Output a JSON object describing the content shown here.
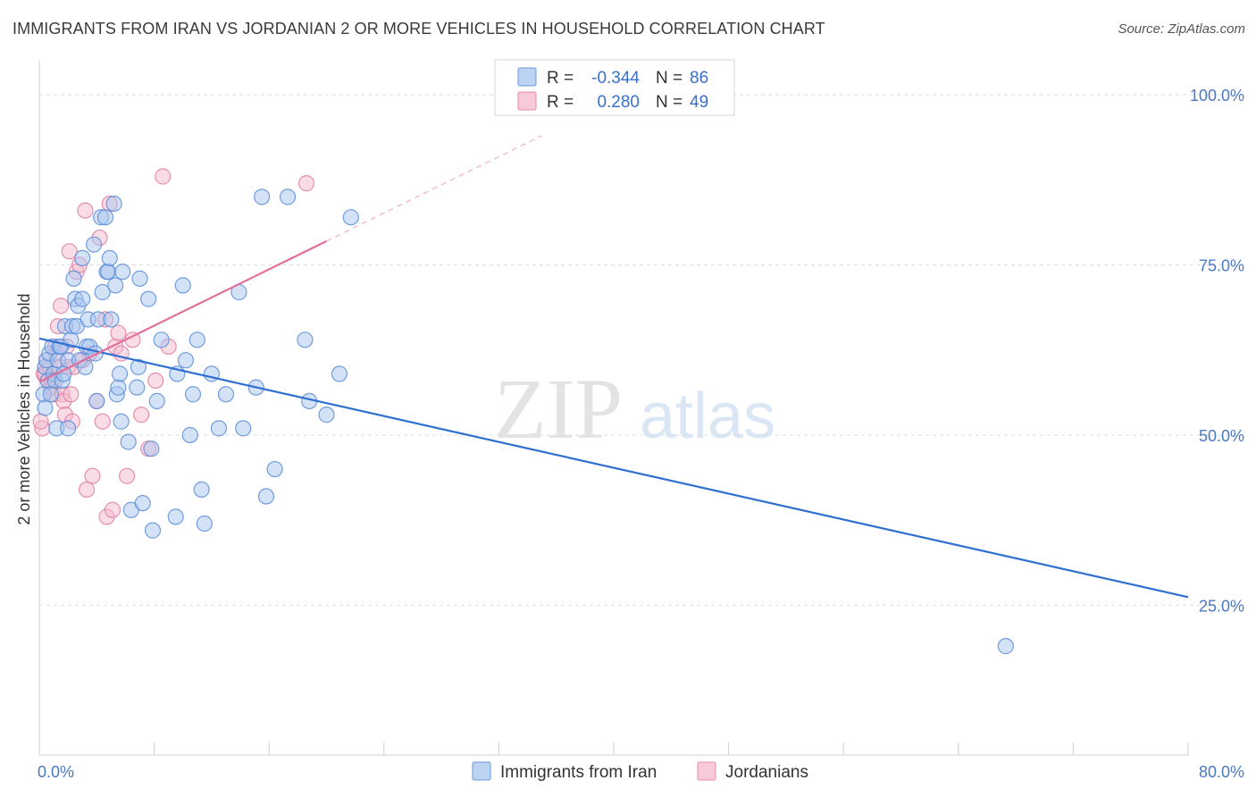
{
  "header": {
    "title": "IMMIGRANTS FROM IRAN VS JORDANIAN 2 OR MORE VEHICLES IN HOUSEHOLD CORRELATION CHART",
    "source": "Source: ZipAtlas.com"
  },
  "watermark": {
    "zip": "ZIP",
    "atlas": "atlas"
  },
  "colors": {
    "blue_fill": "#a9c6ef",
    "blue_stroke": "#5a8ed8",
    "blue_line": "#2f6fd0",
    "pink_fill": "#f6b9cd",
    "pink_stroke": "#e07fa3",
    "pink_line": "#e0709b",
    "grid": "#dedede",
    "axis_text": "#4a78c2"
  },
  "legend": {
    "rows": [
      {
        "r_label": "R =",
        "r_value": "-0.344",
        "n_label": "N =",
        "n_value": "86"
      },
      {
        "r_label": "R =",
        "r_value": "0.280",
        "n_label": "N =",
        "n_value": "49"
      }
    ]
  },
  "chart_data": {
    "type": "scatter",
    "title": "IMMIGRANTS FROM IRAN VS JORDANIAN 2 OR MORE VEHICLES IN HOUSEHOLD CORRELATION CHART",
    "xlabel": "",
    "ylabel": "2 or more Vehicles in Household",
    "xlim": [
      0,
      80
    ],
    "ylim": [
      3,
      105
    ],
    "x_ticks": [
      "0.0%",
      "80.0%"
    ],
    "y_ticks": [
      {
        "value": 25,
        "label": "25.0%"
      },
      {
        "value": 50,
        "label": "50.0%"
      },
      {
        "value": 75,
        "label": "75.0%"
      },
      {
        "value": 100,
        "label": "100.0%"
      }
    ],
    "grid": true,
    "legend_position": "top-center",
    "series": [
      {
        "name": "Immigrants from Iran",
        "r": -0.344,
        "n": 86,
        "trend": {
          "x": [
            0,
            80
          ],
          "y": [
            64.2,
            26.2
          ]
        },
        "points": [
          [
            0.3,
            56
          ],
          [
            0.4,
            54
          ],
          [
            0.4,
            60
          ],
          [
            0.5,
            61
          ],
          [
            0.6,
            58
          ],
          [
            0.7,
            62
          ],
          [
            0.8,
            56
          ],
          [
            0.9,
            63
          ],
          [
            1.0,
            59
          ],
          [
            1.1,
            58
          ],
          [
            1.2,
            51
          ],
          [
            1.3,
            61
          ],
          [
            1.4,
            63
          ],
          [
            1.5,
            63
          ],
          [
            1.6,
            58
          ],
          [
            1.7,
            59
          ],
          [
            1.8,
            66
          ],
          [
            2.0,
            61
          ],
          [
            2.0,
            51
          ],
          [
            2.2,
            64
          ],
          [
            2.3,
            66
          ],
          [
            2.4,
            73
          ],
          [
            2.5,
            70
          ],
          [
            2.6,
            66
          ],
          [
            2.7,
            69
          ],
          [
            2.8,
            61
          ],
          [
            3.0,
            70
          ],
          [
            3.0,
            76
          ],
          [
            3.2,
            60
          ],
          [
            3.3,
            63
          ],
          [
            3.4,
            67
          ],
          [
            3.5,
            63
          ],
          [
            3.8,
            78
          ],
          [
            3.9,
            62
          ],
          [
            4.0,
            55
          ],
          [
            4.1,
            67
          ],
          [
            4.3,
            82
          ],
          [
            4.4,
            71
          ],
          [
            4.6,
            82
          ],
          [
            4.7,
            74
          ],
          [
            4.8,
            74
          ],
          [
            4.9,
            76
          ],
          [
            5.0,
            67
          ],
          [
            5.2,
            84
          ],
          [
            5.3,
            72
          ],
          [
            5.4,
            56
          ],
          [
            5.5,
            57
          ],
          [
            5.6,
            59
          ],
          [
            5.7,
            52
          ],
          [
            5.8,
            74
          ],
          [
            6.2,
            49
          ],
          [
            6.4,
            39
          ],
          [
            6.8,
            57
          ],
          [
            6.9,
            60
          ],
          [
            7.0,
            73
          ],
          [
            7.2,
            40
          ],
          [
            7.6,
            70
          ],
          [
            7.8,
            48
          ],
          [
            7.9,
            36
          ],
          [
            8.2,
            55
          ],
          [
            8.5,
            64
          ],
          [
            9.5,
            38
          ],
          [
            9.6,
            59
          ],
          [
            10.0,
            72
          ],
          [
            10.2,
            61
          ],
          [
            10.5,
            50
          ],
          [
            10.7,
            56
          ],
          [
            11.0,
            64
          ],
          [
            11.3,
            42
          ],
          [
            11.5,
            37
          ],
          [
            12.0,
            59
          ],
          [
            12.5,
            51
          ],
          [
            13.0,
            56
          ],
          [
            13.9,
            71
          ],
          [
            14.2,
            51
          ],
          [
            15.1,
            57
          ],
          [
            15.5,
            85
          ],
          [
            15.8,
            41
          ],
          [
            16.4,
            45
          ],
          [
            17.3,
            85
          ],
          [
            18.5,
            64
          ],
          [
            18.8,
            55
          ],
          [
            20.0,
            53
          ],
          [
            20.9,
            59
          ],
          [
            21.7,
            82
          ],
          [
            67.3,
            19
          ]
        ]
      },
      {
        "name": "Jordanians",
        "r": 0.28,
        "n": 49,
        "trend": {
          "x": [
            0,
            20
          ],
          "y": [
            57.8,
            78.5
          ]
        },
        "trend_extension": {
          "x": [
            20,
            35
          ],
          "y": [
            78.5,
            94.0
          ]
        },
        "points": [
          [
            0.2,
            51
          ],
          [
            0.3,
            59
          ],
          [
            0.4,
            59
          ],
          [
            0.5,
            61
          ],
          [
            0.6,
            58
          ],
          [
            0.7,
            60
          ],
          [
            0.8,
            57
          ],
          [
            0.9,
            58
          ],
          [
            1.0,
            56
          ],
          [
            1.1,
            63
          ],
          [
            1.2,
            62
          ],
          [
            1.3,
            66
          ],
          [
            1.4,
            60
          ],
          [
            1.5,
            69
          ],
          [
            1.6,
            56
          ],
          [
            1.7,
            55
          ],
          [
            1.8,
            53
          ],
          [
            1.9,
            63
          ],
          [
            2.0,
            60
          ],
          [
            2.1,
            77
          ],
          [
            2.2,
            56
          ],
          [
            2.3,
            52
          ],
          [
            2.4,
            60
          ],
          [
            2.6,
            74
          ],
          [
            2.8,
            75
          ],
          [
            3.0,
            61
          ],
          [
            3.2,
            83
          ],
          [
            3.3,
            42
          ],
          [
            3.5,
            62
          ],
          [
            3.7,
            44
          ],
          [
            4.0,
            55
          ],
          [
            4.2,
            79
          ],
          [
            4.4,
            52
          ],
          [
            4.6,
            67
          ],
          [
            4.7,
            38
          ],
          [
            4.9,
            84
          ],
          [
            5.1,
            39
          ],
          [
            5.3,
            63
          ],
          [
            5.5,
            65
          ],
          [
            5.7,
            62
          ],
          [
            6.1,
            44
          ],
          [
            6.5,
            64
          ],
          [
            7.1,
            53
          ],
          [
            7.6,
            48
          ],
          [
            8.1,
            58
          ],
          [
            8.6,
            88
          ],
          [
            9.0,
            63
          ],
          [
            18.6,
            87
          ],
          [
            0.1,
            52
          ]
        ]
      }
    ]
  }
}
